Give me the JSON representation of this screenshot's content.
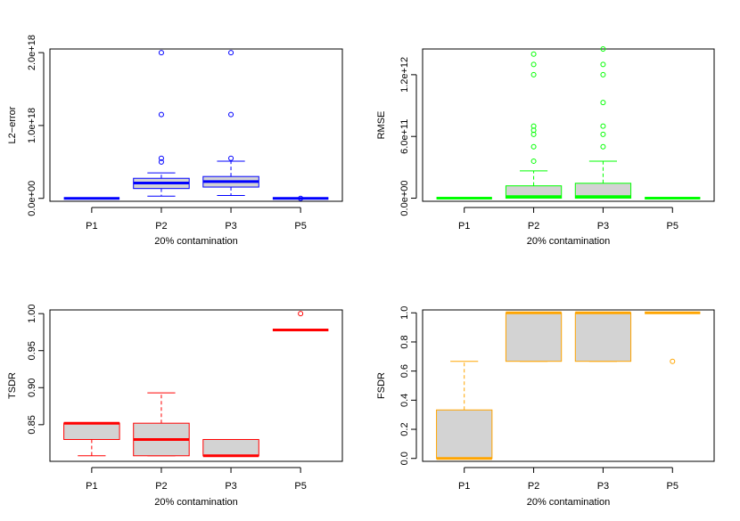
{
  "chart_data": [
    {
      "type": "box",
      "ylabel": "L2−error",
      "xlabel": "20% contamination",
      "categories": [
        "P1",
        "P2",
        "P3",
        "P5"
      ],
      "ylim": [
        -4e+16,
        2.05e+18
      ],
      "yticks": [
        0,
        1e+18,
        2e+18
      ],
      "ytick_labels": [
        "0.0e+00",
        "1.0e+18",
        "2.0e+18"
      ],
      "color": "#0000ff",
      "fill": "#d3d3d3",
      "boxes": [
        {
          "min": 0,
          "q1": 0,
          "median": 0,
          "q3": 0,
          "max": 0,
          "outliers": []
        },
        {
          "min": 3e+16,
          "q1": 1.35e+17,
          "median": 2.1e+17,
          "q3": 2.75e+17,
          "max": 3.5e+17,
          "outliers": [
            5e+17,
            5.5e+17,
            1.15e+18,
            2e+18
          ]
        },
        {
          "min": 4e+16,
          "q1": 1.55e+17,
          "median": 2.3e+17,
          "q3": 3e+17,
          "max": 5.1e+17,
          "outliers": [
            5.5e+17,
            1.15e+18,
            2e+18
          ]
        },
        {
          "min": 0,
          "q1": 0,
          "median": 0,
          "q3": 0,
          "max": 0,
          "outliers": [
            0
          ]
        }
      ]
    },
    {
      "type": "box",
      "ylabel": "RMSE",
      "xlabel": "20% contamination",
      "categories": [
        "P1",
        "P2",
        "P3",
        "P5"
      ],
      "ylim": [
        -30000000000.0,
        1450000000000.0
      ],
      "yticks": [
        0,
        600000000000.0,
        1200000000000.0
      ],
      "ytick_labels": [
        "0.0e+00",
        "6.0e+11",
        "1.2e+12"
      ],
      "color": "#00ff00",
      "fill": "#d3d3d3",
      "boxes": [
        {
          "min": 0,
          "q1": 0,
          "median": 0,
          "q3": 0,
          "max": 0,
          "outliers": []
        },
        {
          "min": 0,
          "q1": 0,
          "median": 15000000000.0,
          "q3": 120000000000.0,
          "max": 265000000000.0,
          "outliers": [
            360000000000.0,
            500000000000.0,
            620000000000.0,
            660000000000.0,
            700000000000.0,
            1200000000000.0,
            1300000000000.0,
            1400000000000.0
          ]
        },
        {
          "min": 0,
          "q1": 0,
          "median": 15000000000.0,
          "q3": 145000000000.0,
          "max": 360000000000.0,
          "outliers": [
            500000000000.0,
            620000000000.0,
            700000000000.0,
            930000000000.0,
            1200000000000.0,
            1300000000000.0,
            1450000000000.0
          ]
        },
        {
          "min": 0,
          "q1": 0,
          "median": 0,
          "q3": 0,
          "max": 0,
          "outliers": []
        }
      ]
    },
    {
      "type": "box",
      "ylabel": "TSDR",
      "xlabel": "20% contamination",
      "categories": [
        "P1",
        "P2",
        "P3",
        "P5"
      ],
      "ylim": [
        0.8005,
        1.005
      ],
      "yticks": [
        0.85,
        0.9,
        0.95,
        1.0
      ],
      "ytick_labels": [
        "0.85",
        "0.90",
        "0.95",
        "1.00"
      ],
      "color": "#ff0000",
      "fill": "#d3d3d3",
      "boxes": [
        {
          "min": 0.808,
          "q1": 0.83,
          "median": 0.852,
          "q3": 0.852,
          "max": 0.852,
          "outliers": []
        },
        {
          "min": 0.808,
          "q1": 0.808,
          "median": 0.83,
          "q3": 0.852,
          "max": 0.893,
          "outliers": []
        },
        {
          "min": 0.808,
          "q1": 0.808,
          "median": 0.808,
          "q3": 0.83,
          "max": 0.83,
          "outliers": []
        },
        {
          "min": 0.978,
          "q1": 0.978,
          "median": 0.978,
          "q3": 0.978,
          "max": 0.978,
          "outliers": [
            1.0
          ]
        }
      ]
    },
    {
      "type": "box",
      "ylabel": "FSDR",
      "xlabel": "20% contamination",
      "categories": [
        "P1",
        "P2",
        "P3",
        "P5"
      ],
      "ylim": [
        -0.02,
        1.02
      ],
      "yticks": [
        0,
        0.2,
        0.4,
        0.6,
        0.8,
        1.0
      ],
      "ytick_labels": [
        "0.0",
        "0.2",
        "0.4",
        "0.6",
        "0.8",
        "1.0"
      ],
      "color": "#ffa500",
      "fill": "#d3d3d3",
      "boxes": [
        {
          "min": 0,
          "q1": 0,
          "median": 0,
          "q3": 0.333,
          "max": 0.667,
          "outliers": []
        },
        {
          "min": 0.667,
          "q1": 0.667,
          "median": 1.0,
          "q3": 1.0,
          "max": 1.0,
          "outliers": []
        },
        {
          "min": 0.667,
          "q1": 0.667,
          "median": 1.0,
          "q3": 1.0,
          "max": 1.0,
          "outliers": []
        },
        {
          "min": 1.0,
          "q1": 1.0,
          "median": 1.0,
          "q3": 1.0,
          "max": 1.0,
          "outliers": [
            0.667
          ]
        }
      ]
    }
  ]
}
